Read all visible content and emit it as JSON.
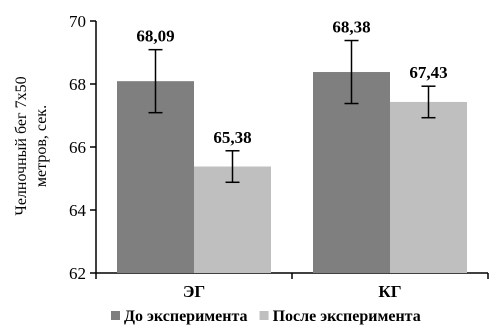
{
  "chart_data": {
    "type": "bar",
    "categories": [
      "ЭГ",
      "КГ"
    ],
    "series": [
      {
        "name": "До эксперимента",
        "values": [
          68.09,
          68.38
        ],
        "errors": [
          1.0,
          1.0
        ],
        "labels": [
          "68,09",
          "68,38"
        ],
        "color": "#7f7f7f"
      },
      {
        "name": "После эксперимента",
        "values": [
          65.38,
          67.43
        ],
        "errors": [
          0.5,
          0.5
        ],
        "labels": [
          "65,38",
          "67,43"
        ],
        "color": "#bfbfbf"
      }
    ],
    "ylabel_line1": "Челночный бег 7х50",
    "ylabel_line2": "метров, сек.",
    "ylim": [
      62,
      70
    ],
    "yticks": [
      62,
      64,
      66,
      68,
      70
    ],
    "ytick_labels": [
      "62",
      "64",
      "66",
      "68",
      "70"
    ],
    "legend_position": "bottom",
    "grid": false
  }
}
